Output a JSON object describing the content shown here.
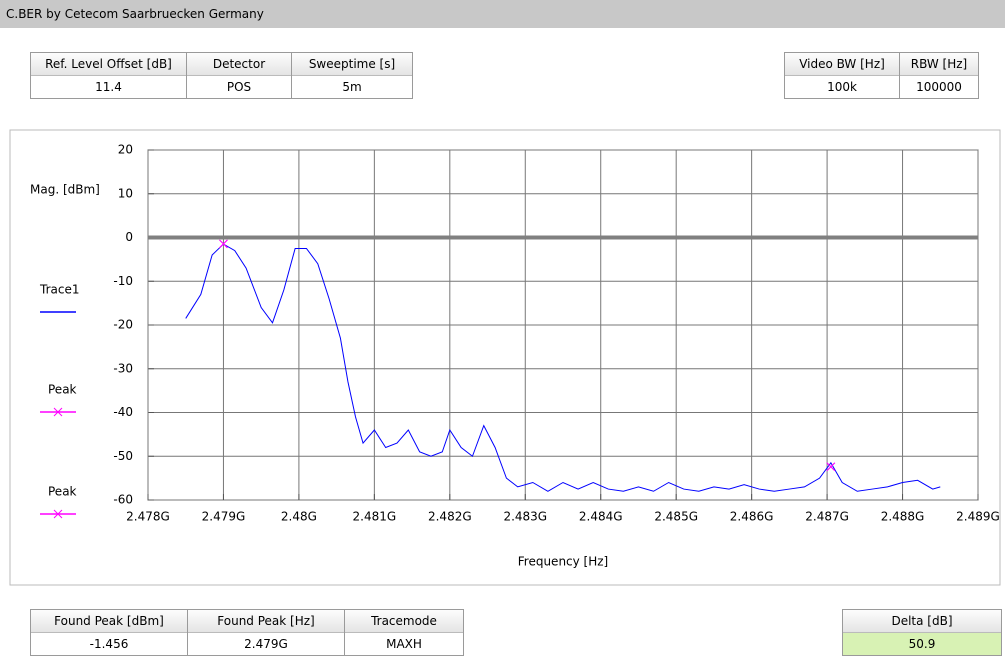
{
  "header": {
    "title": "C.BER by Cetecom Saarbruecken Germany"
  },
  "tables": {
    "settings": {
      "headers": [
        "Ref. Level Offset [dB]",
        "Detector",
        "Sweeptime [s]"
      ],
      "values": [
        "11.4",
        "POS",
        "5m"
      ]
    },
    "bandwidth": {
      "headers": [
        "Video BW [Hz]",
        "RBW [Hz]"
      ],
      "values": [
        "100k",
        "100000"
      ]
    },
    "results": {
      "headers": [
        "Found Peak [dBm]",
        "Found Peak [Hz]",
        "Tracemode"
      ],
      "values": [
        "-1.456",
        "2.479G",
        "MAXH"
      ]
    },
    "delta": {
      "headers": [
        "Delta [dB]"
      ],
      "values": [
        "50.9"
      ]
    }
  },
  "chart_data": {
    "type": "line",
    "x_label": "Frequency [Hz]",
    "y_label": "Mag. [dBm]",
    "xlim": [
      2478000000,
      2489000000
    ],
    "xticks": [
      {
        "value": 2478000000,
        "label": "2.478G"
      },
      {
        "value": 2479000000,
        "label": "2.479G"
      },
      {
        "value": 2480000000,
        "label": "2.48G"
      },
      {
        "value": 2481000000,
        "label": "2.481G"
      },
      {
        "value": 2482000000,
        "label": "2.482G"
      },
      {
        "value": 2483000000,
        "label": "2.483G"
      },
      {
        "value": 2484000000,
        "label": "2.484G"
      },
      {
        "value": 2485000000,
        "label": "2.485G"
      },
      {
        "value": 2486000000,
        "label": "2.486G"
      },
      {
        "value": 2487000000,
        "label": "2.487G"
      },
      {
        "value": 2488000000,
        "label": "2.488G"
      },
      {
        "value": 2489000000,
        "label": "2.489G"
      }
    ],
    "ylim": [
      -60,
      20
    ],
    "yticks": [
      -60,
      -50,
      -40,
      -30,
      -20,
      -10,
      0,
      10,
      20
    ],
    "reference_line": 0,
    "grid": true,
    "series": [
      {
        "name": "Trace1",
        "color": "#0000ff",
        "x": [
          2478500000,
          2478700000,
          2478850000,
          2479000000,
          2479150000,
          2479300000,
          2479500000,
          2479650000,
          2479800000,
          2479950000,
          2480100000,
          2480250000,
          2480400000,
          2480550000,
          2480650000,
          2480750000,
          2480850000,
          2481000000,
          2481150000,
          2481300000,
          2481450000,
          2481600000,
          2481750000,
          2481900000,
          2482000000,
          2482150000,
          2482300000,
          2482450000,
          2482600000,
          2482750000,
          2482900000,
          2483100000,
          2483300000,
          2483500000,
          2483700000,
          2483900000,
          2484100000,
          2484300000,
          2484500000,
          2484700000,
          2484900000,
          2485100000,
          2485300000,
          2485500000,
          2485700000,
          2485900000,
          2486100000,
          2486300000,
          2486500000,
          2486700000,
          2486900000,
          2487050000,
          2487200000,
          2487400000,
          2487600000,
          2487800000,
          2488000000,
          2488200000,
          2488400000,
          2488500000
        ],
        "values": [
          -18.5,
          -13,
          -4,
          -1.5,
          -3,
          -7,
          -16,
          -19.5,
          -12,
          -2.5,
          -2.5,
          -6,
          -14,
          -23,
          -33,
          -41,
          -47,
          -44,
          -48,
          -47,
          -44,
          -49,
          -50,
          -49,
          -44,
          -48,
          -50,
          -43,
          -48,
          -55,
          -57,
          -56,
          -58,
          -56,
          -57.5,
          -56,
          -57.5,
          -58,
          -57,
          -58,
          -56,
          -57.5,
          -58,
          -57,
          -57.5,
          -56.5,
          -57.5,
          -58,
          -57.5,
          -57,
          -55,
          -51.5,
          -56,
          -58,
          -57.5,
          -57,
          -56,
          -55.5,
          -57.5,
          -57
        ]
      },
      {
        "name": "Peak",
        "color": "#ff00ff",
        "marker": "x",
        "x": [
          2479000000
        ],
        "values": [
          -1.456
        ]
      },
      {
        "name": "Peak",
        "color": "#ff00ff",
        "marker": "x",
        "x": [
          2487050000
        ],
        "values": [
          -52.4
        ]
      }
    ]
  }
}
